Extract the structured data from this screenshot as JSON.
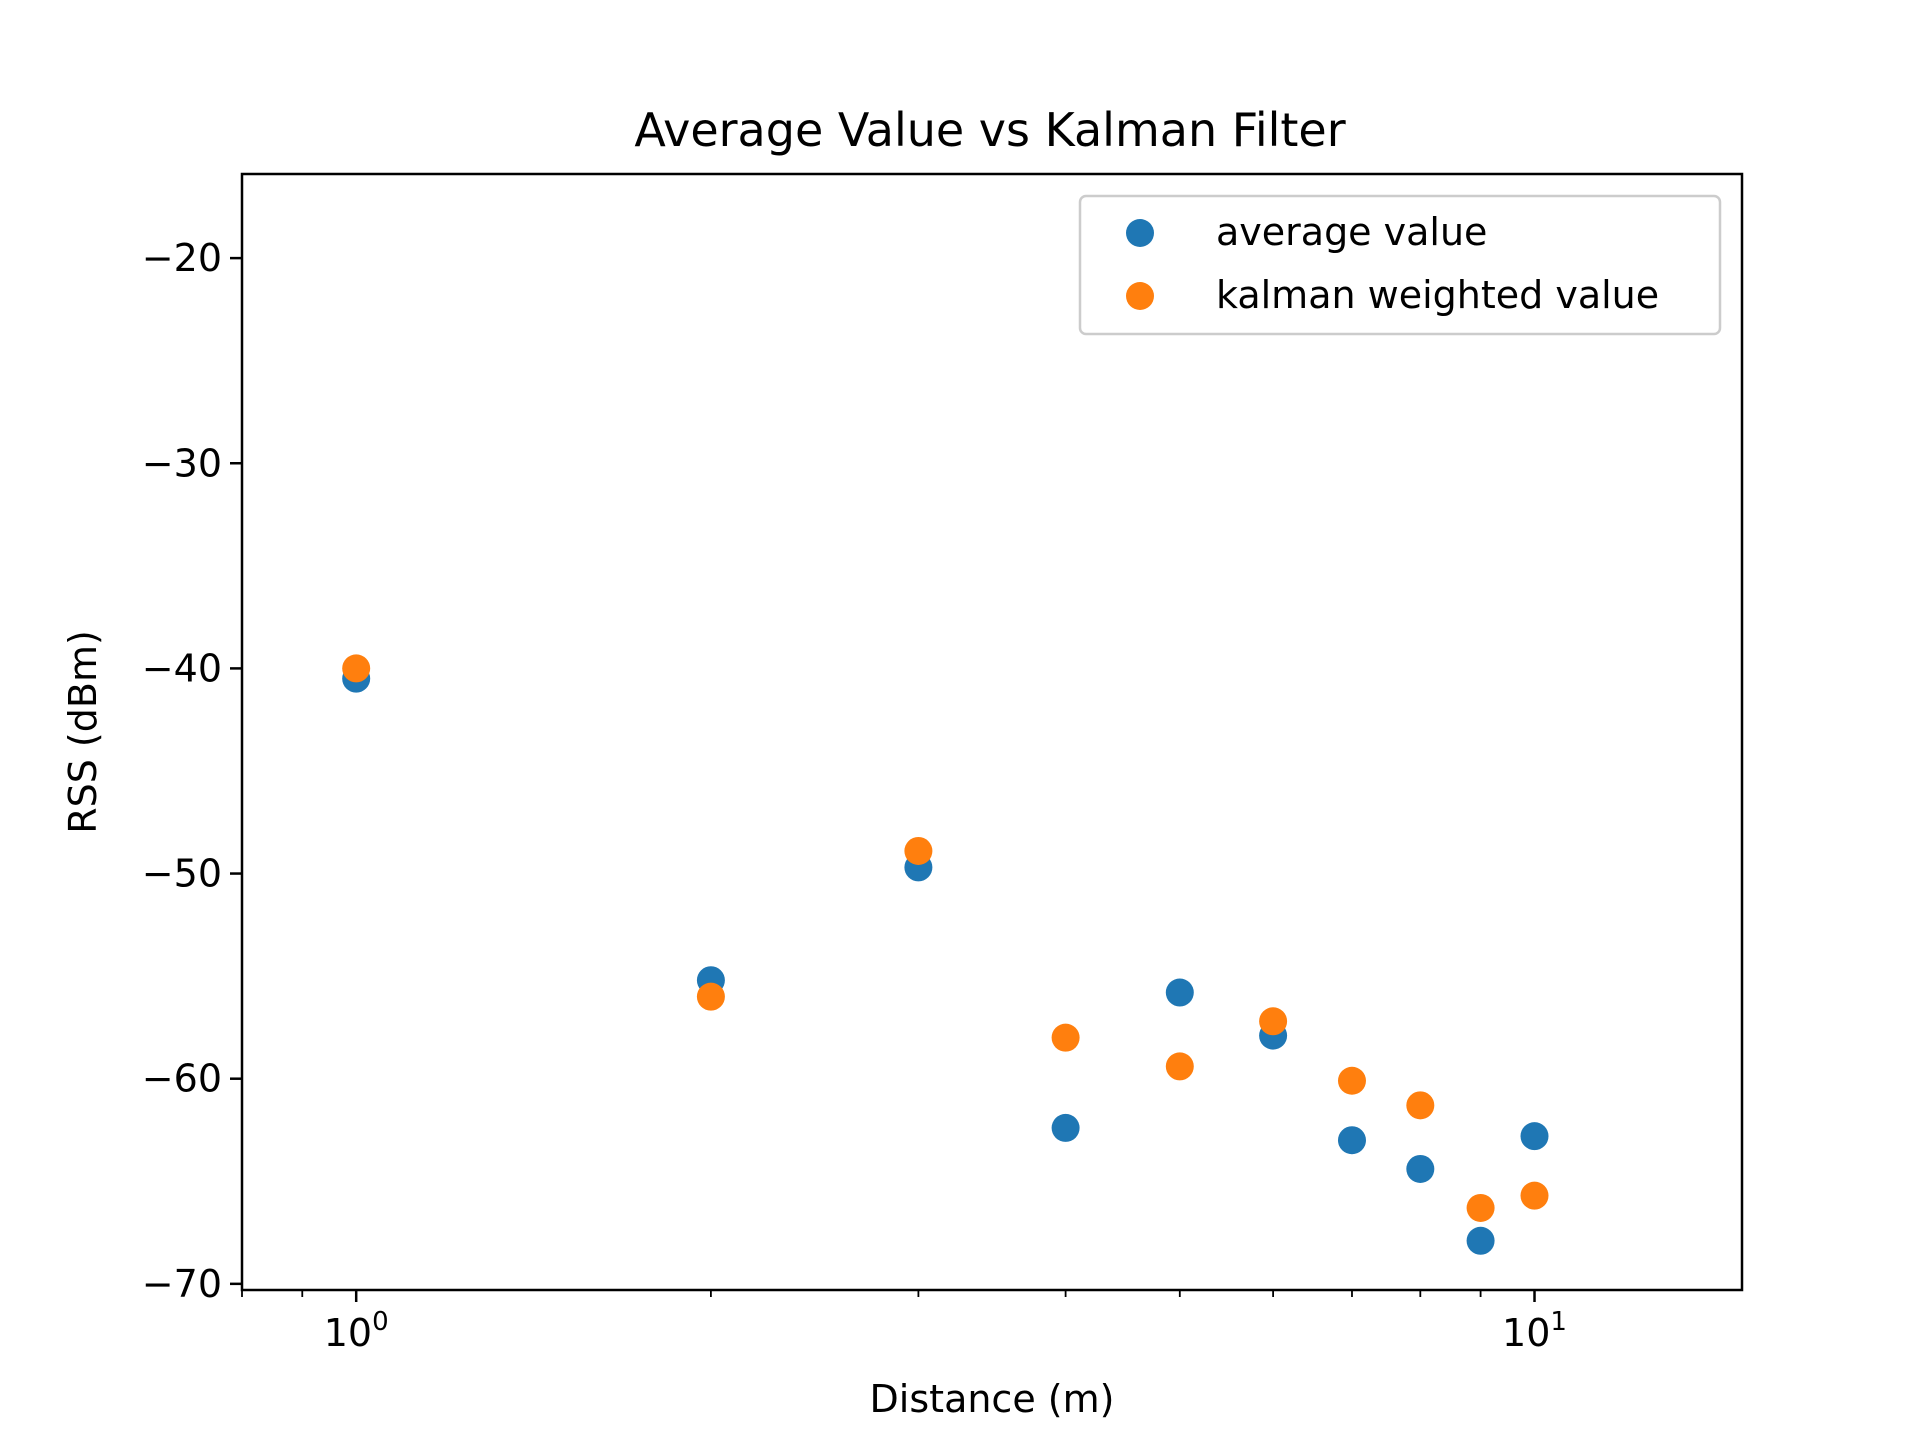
{
  "chart_data": {
    "type": "scatter",
    "title": "Average Value vs Kalman Filter",
    "xlabel": "Distance (m)",
    "ylabel": "RSS (dBm)",
    "xscale": "log",
    "xlim": [
      0.8,
      15
    ],
    "ylim": [
      -70.3,
      -15.9
    ],
    "x_ticks": [
      {
        "value": 1,
        "base": "10",
        "exp": "0"
      },
      {
        "value": 10,
        "base": "10",
        "exp": "1"
      }
    ],
    "y_ticks": [
      {
        "value": -20,
        "label": "−20"
      },
      {
        "value": -30,
        "label": "−30"
      },
      {
        "value": -40,
        "label": "−40"
      },
      {
        "value": -50,
        "label": "−50"
      },
      {
        "value": -60,
        "label": "−60"
      },
      {
        "value": -70,
        "label": "−70"
      }
    ],
    "grid": false,
    "legend_position": "top-right",
    "series": [
      {
        "name": "average value",
        "color": "#1f77b4",
        "points": [
          {
            "x": 1,
            "y": -40.5
          },
          {
            "x": 2,
            "y": -55.2
          },
          {
            "x": 3,
            "y": -49.7
          },
          {
            "x": 4,
            "y": -62.4
          },
          {
            "x": 5,
            "y": -55.8
          },
          {
            "x": 6,
            "y": -57.9
          },
          {
            "x": 7,
            "y": -63.0
          },
          {
            "x": 8,
            "y": -64.4
          },
          {
            "x": 9,
            "y": -67.9
          },
          {
            "x": 10,
            "y": -62.8
          }
        ]
      },
      {
        "name": "kalman weighted value",
        "color": "#ff7f0e",
        "points": [
          {
            "x": 1,
            "y": -40.0
          },
          {
            "x": 2,
            "y": -56.0
          },
          {
            "x": 3,
            "y": -48.9
          },
          {
            "x": 4,
            "y": -58.0
          },
          {
            "x": 5,
            "y": -59.4
          },
          {
            "x": 6,
            "y": -57.2
          },
          {
            "x": 7,
            "y": -60.1
          },
          {
            "x": 8,
            "y": -61.3
          },
          {
            "x": 9,
            "y": -66.3
          },
          {
            "x": 10,
            "y": -65.7
          }
        ]
      }
    ]
  }
}
